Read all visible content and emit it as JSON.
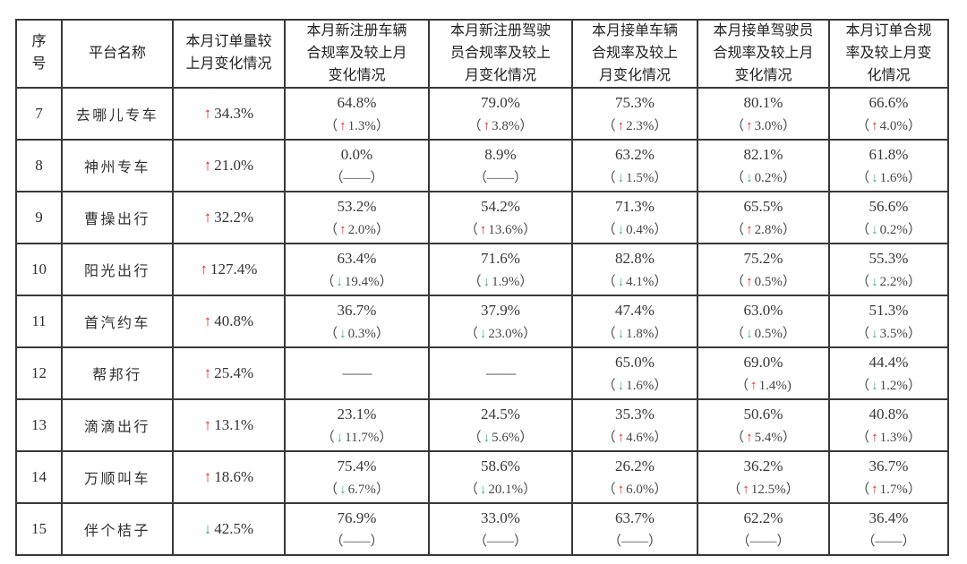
{
  "colors": {
    "up_arrow": "#e8251d",
    "down_arrow": "#2eb87c",
    "text": "#333333",
    "border": "#383838",
    "background": "#ffffff"
  },
  "icons": {
    "up_arrow": "↑",
    "down_arrow": "↓"
  },
  "punct": {
    "open_paren": "（",
    "close_paren": "）"
  },
  "table": {
    "columns": [
      {
        "id": "serial",
        "label": "序\n号"
      },
      {
        "id": "platform",
        "label": "平台名称"
      },
      {
        "id": "order-volume-change",
        "label": "本月订单量较\n上月变化情况"
      },
      {
        "id": "new-vehicle-compliance",
        "label": "本月新注册车辆\n合规率及较上月\n变化情况"
      },
      {
        "id": "new-driver-compliance",
        "label": "本月新注册驾驶\n员合规率及较上\n月变化情况"
      },
      {
        "id": "order-vehicle-compliance",
        "label": "本月接单车辆\n合规率及较上\n月变化情况"
      },
      {
        "id": "order-driver-compliance",
        "label": "本月接单驾驶员\n合规率及较上月\n变化情况"
      },
      {
        "id": "order-compliance",
        "label": "本月订单合规\n率及较上月变\n化情况"
      }
    ],
    "rows": [
      {
        "no": "7",
        "platform": "去哪儿专车",
        "order_change": {
          "dir": "up",
          "value": "34.3%"
        },
        "metrics": [
          {
            "rate": "64.8%",
            "dir": "up",
            "change": "1.3%"
          },
          {
            "rate": "79.0%",
            "dir": "up",
            "change": "3.8%"
          },
          {
            "rate": "75.3%",
            "dir": "up",
            "change": "2.3%"
          },
          {
            "rate": "80.1%",
            "dir": "up",
            "change": "3.0%"
          },
          {
            "rate": "66.6%",
            "dir": "up",
            "change": "4.0%"
          }
        ]
      },
      {
        "no": "8",
        "platform": "神州专车",
        "order_change": {
          "dir": "up",
          "value": "21.0%"
        },
        "metrics": [
          {
            "rate": "0.0%",
            "dir": null,
            "change": "——"
          },
          {
            "rate": "8.9%",
            "dir": null,
            "change": "——"
          },
          {
            "rate": "63.2%",
            "dir": "down",
            "change": "1.5%"
          },
          {
            "rate": "82.1%",
            "dir": "down",
            "change": "0.2%"
          },
          {
            "rate": "61.8%",
            "dir": "down",
            "change": "1.6%"
          }
        ]
      },
      {
        "no": "9",
        "platform": "曹操出行",
        "order_change": {
          "dir": "up",
          "value": "32.2%"
        },
        "metrics": [
          {
            "rate": "53.2%",
            "dir": "up",
            "change": "2.0%"
          },
          {
            "rate": "54.2%",
            "dir": "up",
            "change": "13.6%"
          },
          {
            "rate": "71.3%",
            "dir": "down",
            "change": "0.4%"
          },
          {
            "rate": "65.5%",
            "dir": "up",
            "change": "2.8%"
          },
          {
            "rate": "56.6%",
            "dir": "down",
            "change": "0.2%"
          }
        ]
      },
      {
        "no": "10",
        "platform": "阳光出行",
        "order_change": {
          "dir": "up",
          "value": "127.4%"
        },
        "metrics": [
          {
            "rate": "63.4%",
            "dir": "down",
            "change": "19.4%"
          },
          {
            "rate": "71.6%",
            "dir": "down",
            "change": "1.9%"
          },
          {
            "rate": "82.8%",
            "dir": "down",
            "change": "4.1%"
          },
          {
            "rate": "75.2%",
            "dir": "up",
            "change": "0.5%"
          },
          {
            "rate": "55.3%",
            "dir": "down",
            "change": "2.2%"
          }
        ]
      },
      {
        "no": "11",
        "platform": "首汽约车",
        "order_change": {
          "dir": "up",
          "value": "40.8%"
        },
        "metrics": [
          {
            "rate": "36.7%",
            "dir": "down",
            "change": "0.3%"
          },
          {
            "rate": "37.9%",
            "dir": "down",
            "change": "23.0%"
          },
          {
            "rate": "47.4%",
            "dir": "down",
            "change": "1.8%"
          },
          {
            "rate": "63.0%",
            "dir": "down",
            "change": "0.5%"
          },
          {
            "rate": "51.3%",
            "dir": "down",
            "change": "3.5%"
          }
        ]
      },
      {
        "no": "12",
        "platform": "帮邦行",
        "order_change": {
          "dir": "up",
          "value": "25.4%"
        },
        "metrics": [
          {
            "rate": "——",
            "dir": null,
            "change": null
          },
          {
            "rate": "——",
            "dir": null,
            "change": null
          },
          {
            "rate": "65.0%",
            "dir": "down",
            "change": "1.6%"
          },
          {
            "rate": "69.0%",
            "dir": "up",
            "change": "1.4%",
            "close": ")"
          },
          {
            "rate": "44.4%",
            "dir": "down",
            "change": "1.2%"
          }
        ]
      },
      {
        "no": "13",
        "platform": "滴滴出行",
        "order_change": {
          "dir": "up",
          "value": "13.1%"
        },
        "metrics": [
          {
            "rate": "23.1%",
            "dir": "down",
            "change": "11.7%"
          },
          {
            "rate": "24.5%",
            "dir": "down",
            "change": "5.6%"
          },
          {
            "rate": "35.3%",
            "dir": "up",
            "change": "4.6%"
          },
          {
            "rate": "50.6%",
            "dir": "up",
            "change": "5.4%"
          },
          {
            "rate": "40.8%",
            "dir": "up",
            "change": "1.3%"
          }
        ]
      },
      {
        "no": "14",
        "platform": "万顺叫车",
        "order_change": {
          "dir": "up",
          "value": "18.6%"
        },
        "metrics": [
          {
            "rate": "75.4%",
            "dir": "down",
            "change": "6.7%"
          },
          {
            "rate": "58.6%",
            "dir": "down",
            "change": "20.1%"
          },
          {
            "rate": "26.2%",
            "dir": "up",
            "change": "6.0%"
          },
          {
            "rate": "36.2%",
            "dir": "up",
            "change": "12.5%"
          },
          {
            "rate": "36.7%",
            "dir": "up",
            "change": "1.7%"
          }
        ]
      },
      {
        "no": "15",
        "platform": "伴个桔子",
        "order_change": {
          "dir": "down",
          "value": "42.5%"
        },
        "metrics": [
          {
            "rate": "76.9%",
            "dir": null,
            "change": "——"
          },
          {
            "rate": "33.0%",
            "dir": null,
            "change": "——"
          },
          {
            "rate": "63.7%",
            "dir": null,
            "change": "——"
          },
          {
            "rate": "62.2%",
            "dir": null,
            "change": "——"
          },
          {
            "rate": "36.4%",
            "dir": null,
            "change": "——"
          }
        ]
      }
    ]
  }
}
